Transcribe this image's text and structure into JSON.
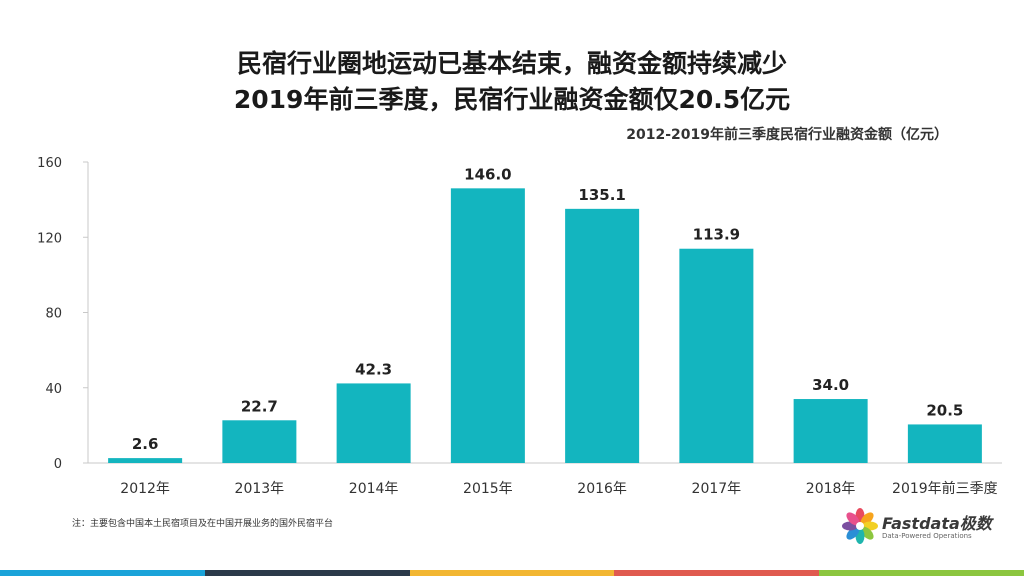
{
  "header": {
    "title_line1": "民宿行业圈地运动已基本结束，融资金额持续减少",
    "title_line2": "2019年前三季度，民宿行业融资金额仅20.5亿元"
  },
  "footnote": "注：主要包含中国本土民宿项目及在中国开展业务的国外民宿平台",
  "logo": {
    "name": "Fastdata极数",
    "tagline": "Data-Powered Operations",
    "petal_colors": [
      "#e84a5f",
      "#f7a41d",
      "#f2d024",
      "#8cc63f",
      "#1fb5ad",
      "#2a8fd6",
      "#7b4fa0",
      "#e8508c"
    ]
  },
  "bottom_bar_colors": [
    "#1aa3d9",
    "#2b3a4a",
    "#f2b632",
    "#e05a4f",
    "#8cc63f"
  ],
  "chart_data": {
    "type": "bar",
    "title": "2012-2019年前三季度民宿行业融资金额（亿元）",
    "categories": [
      "2012年",
      "2013年",
      "2014年",
      "2015年",
      "2016年",
      "2017年",
      "2018年",
      "2019年前三季度"
    ],
    "values": [
      2.6,
      22.7,
      42.3,
      146.0,
      135.1,
      113.9,
      34.0,
      20.5
    ],
    "value_labels": [
      "2.6",
      "22.7",
      "42.3",
      "146.0",
      "135.1",
      "113.9",
      "34.0",
      "20.5"
    ],
    "yticks": [
      "0",
      "40",
      "80",
      "120",
      "160"
    ],
    "ylim": [
      0,
      160
    ],
    "bar_color": "#13b5bf",
    "grid": false,
    "legend": "none"
  }
}
